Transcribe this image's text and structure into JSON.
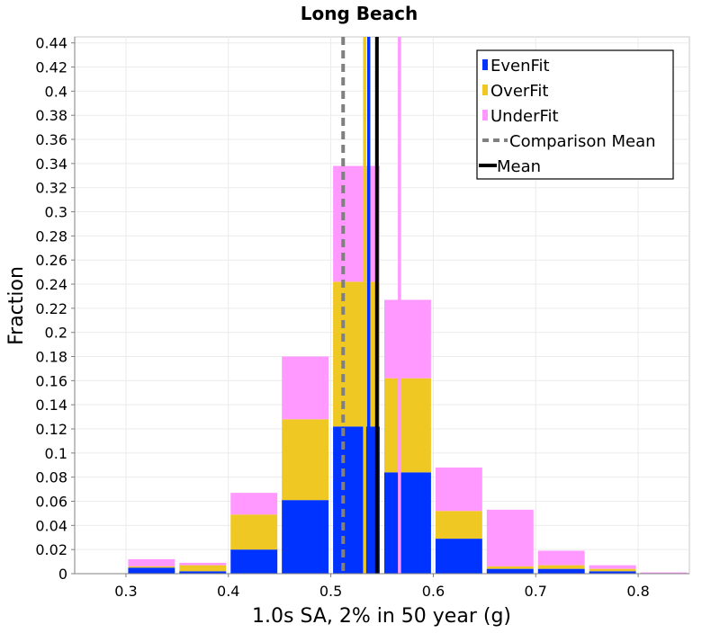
{
  "chart_data": {
    "type": "bar",
    "stacked": true,
    "title": "Long Beach",
    "xlabel": "1.0s SA, 2% in 50 year (g)",
    "ylabel": "Fraction",
    "xlim": [
      0.25,
      0.85
    ],
    "ylim": [
      0,
      0.445
    ],
    "x_ticks": [
      0.3,
      0.4,
      0.5,
      0.6,
      0.7,
      0.8
    ],
    "x_tick_labels": [
      "0.3",
      "0.4",
      "0.5",
      "0.6",
      "0.7",
      "0.8"
    ],
    "y_ticks": [
      0,
      0.02,
      0.04,
      0.06,
      0.08,
      0.1,
      0.12,
      0.14,
      0.16,
      0.18,
      0.2,
      0.22,
      0.24,
      0.26,
      0.28,
      0.3,
      0.32,
      0.34,
      0.36,
      0.38,
      0.4,
      0.42,
      0.44
    ],
    "y_tick_labels": [
      "0",
      "0.02",
      "0.04",
      "0.06",
      "0.08",
      "0.1",
      "0.12",
      "0.14",
      "0.16",
      "0.18",
      "0.2",
      "0.22",
      "0.24",
      "0.26",
      "0.28",
      "0.3",
      "0.32",
      "0.34",
      "0.36",
      "0.38",
      "0.4",
      "0.42",
      "0.44"
    ],
    "grid": true,
    "legend_position": "top-right",
    "bin_width": 0.05,
    "bins": [
      0.275,
      0.325,
      0.375,
      0.425,
      0.475,
      0.525,
      0.575,
      0.625,
      0.675,
      0.725,
      0.775,
      0.825
    ],
    "series": [
      {
        "name": "EvenFit",
        "color": "#0033ff",
        "values": [
          0,
          0.005,
          0.002,
          0.02,
          0.061,
          0.122,
          0.084,
          0.029,
          0.004,
          0.004,
          0.002,
          0
        ]
      },
      {
        "name": "OverFit",
        "color": "#f0c823",
        "values": [
          0,
          0.001,
          0.005,
          0.029,
          0.067,
          0.12,
          0.078,
          0.023,
          0.002,
          0.003,
          0.002,
          0
        ]
      },
      {
        "name": "UnderFit",
        "color": "#ff99ff",
        "values": [
          0,
          0.006,
          0.002,
          0.018,
          0.052,
          0.096,
          0.065,
          0.036,
          0.047,
          0.012,
          0.003,
          0.001
        ]
      }
    ],
    "vertical_lines": [
      {
        "name": "Comparison Mean",
        "x": 0.512,
        "color": "#808080",
        "style": "dashed"
      },
      {
        "name": "Mean",
        "x": 0.545,
        "color": "#000000",
        "style": "solid"
      },
      {
        "name": "EvenFit mean",
        "x": 0.537,
        "color": "#0033ff",
        "style": "solid"
      },
      {
        "name": "OverFit mean",
        "x": 0.533,
        "color": "#f0c823",
        "style": "solid"
      },
      {
        "name": "UnderFit mean",
        "x": 0.567,
        "color": "#ff99ff",
        "style": "solid"
      }
    ],
    "legend": [
      {
        "label": "EvenFit",
        "kind": "bar",
        "color": "#0033ff"
      },
      {
        "label": "OverFit",
        "kind": "bar",
        "color": "#f0c823"
      },
      {
        "label": "UnderFit",
        "kind": "bar",
        "color": "#ff99ff"
      },
      {
        "label": "Comparison Mean",
        "kind": "dashed",
        "color": "#808080"
      },
      {
        "label": "Mean",
        "kind": "solid",
        "color": "#000000"
      }
    ]
  }
}
